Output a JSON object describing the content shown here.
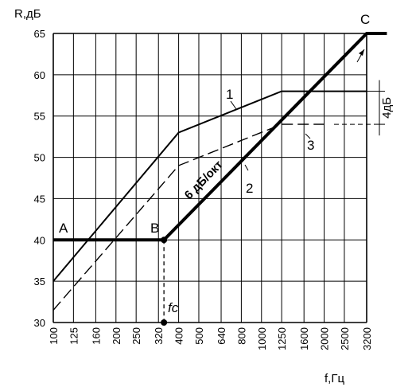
{
  "chart_data": {
    "type": "line",
    "ylabel": "R,дБ",
    "xlabel": "f,Гц",
    "x_scale": "log",
    "x_ticks": [
      "100",
      "125",
      "160",
      "200",
      "250",
      "320",
      "400",
      "500",
      "640",
      "800",
      "1000",
      "1250",
      "1600",
      "2000",
      "2500",
      "3200"
    ],
    "y_ticks": [
      "30",
      "35",
      "40",
      "45",
      "50",
      "55",
      "60",
      "65"
    ],
    "xlim": [
      100,
      3200
    ],
    "ylim": [
      30,
      65
    ],
    "grid": true,
    "series": [
      {
        "name": "1",
        "style": "solid",
        "points": [
          [
            100,
            35
          ],
          [
            400,
            53
          ],
          [
            1250,
            58
          ],
          [
            3200,
            58
          ]
        ]
      },
      {
        "name": "3",
        "style": "dashed",
        "points": [
          [
            100,
            31.5
          ],
          [
            400,
            49
          ],
          [
            1250,
            54
          ],
          [
            2000,
            54
          ]
        ]
      },
      {
        "name": "2",
        "style": "bold",
        "points": [
          [
            100,
            40
          ],
          [
            340,
            40
          ],
          [
            3200,
            65
          ],
          [
            4000,
            65
          ]
        ]
      }
    ],
    "annotations": {
      "point_a": "A",
      "point_b": "B",
      "point_c": "C",
      "slope_label": "6 дБ/окт",
      "fc_label": "fc",
      "delta_label": "4дБ",
      "fc_value": 340
    }
  }
}
